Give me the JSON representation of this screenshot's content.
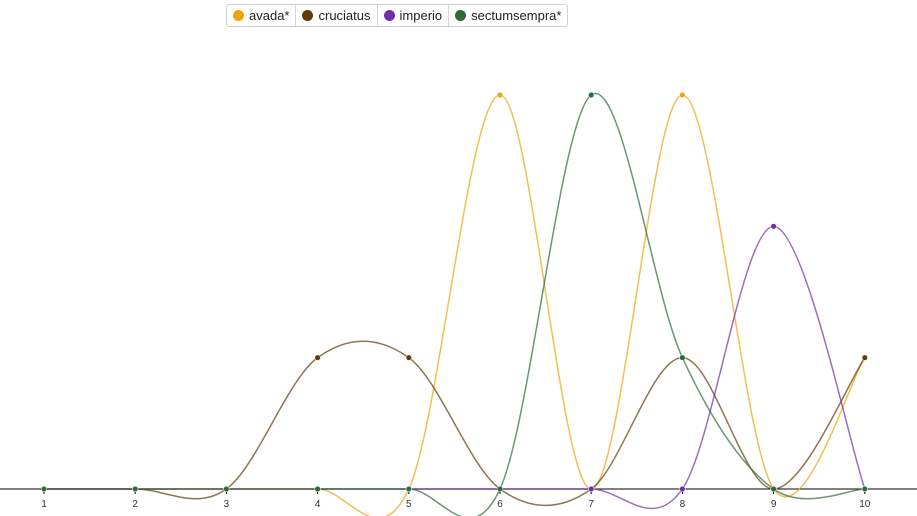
{
  "legend": {
    "items": [
      {
        "label": "avada*",
        "color": "#f0a30a"
      },
      {
        "label": "cruciatus",
        "color": "#5c3d0a"
      },
      {
        "label": "imperio",
        "color": "#7030a0"
      },
      {
        "label": "sectumsempra*",
        "color": "#2d6a3a"
      }
    ]
  },
  "chart_data": {
    "type": "line",
    "title": "",
    "xlabel": "",
    "ylabel": "",
    "x": [
      1,
      2,
      3,
      4,
      5,
      6,
      7,
      8,
      9,
      10
    ],
    "xticks": [
      "1",
      "2",
      "3",
      "4",
      "5",
      "6",
      "7",
      "8",
      "9",
      "10"
    ],
    "ylim": [
      0,
      3.1
    ],
    "grid": false,
    "legend_position": "top",
    "series": [
      {
        "name": "avada*",
        "color": "#f0a30a",
        "values": [
          0,
          0,
          0,
          0,
          0,
          3,
          0,
          3,
          0,
          1
        ]
      },
      {
        "name": "cruciatus",
        "color": "#5c3d0a",
        "values": [
          0,
          0,
          0,
          1,
          1,
          0,
          0,
          1,
          0,
          1
        ]
      },
      {
        "name": "imperio",
        "color": "#7030a0",
        "values": [
          0,
          0,
          0,
          0,
          0,
          0,
          0,
          0,
          2,
          0
        ]
      },
      {
        "name": "sectumsempra*",
        "color": "#2d6a3a",
        "values": [
          0,
          0,
          0,
          0,
          0,
          0,
          3,
          1,
          0,
          0
        ]
      }
    ]
  }
}
